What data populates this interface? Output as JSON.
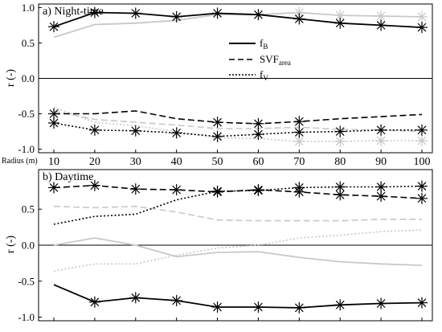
{
  "figure": {
    "shared_x_axis_label": "Radius (m)",
    "x_tick_labels": [
      "10",
      "20",
      "30",
      "40",
      "50",
      "60",
      "70",
      "80",
      "90",
      "100"
    ]
  },
  "legend": {
    "items": [
      {
        "series": "fB",
        "base": "f",
        "sub": "B",
        "style": "solid"
      },
      {
        "series": "SVFarea",
        "base": "SVF",
        "sub": "area",
        "style": "dashed"
      },
      {
        "series": "fV",
        "base": "f",
        "sub": "V",
        "style": "dotted"
      }
    ]
  },
  "colors": {
    "dark": "#000000",
    "light": "#c8c8c8"
  },
  "marker": "asterisk",
  "chart_data": [
    {
      "type": "line",
      "panel_title": "a) Night-time",
      "ylabel": "r (-)",
      "x": [
        10,
        20,
        30,
        40,
        50,
        60,
        70,
        80,
        90,
        100
      ],
      "ylim": [
        -1.05,
        1.05
      ],
      "yticks": [
        1.0,
        0.5,
        0.0,
        -0.5,
        -1.0
      ],
      "y_tick_labels": [
        "1.0",
        "0.5",
        "0.0",
        "-0.5",
        "-1.0"
      ],
      "grid": false,
      "series": [
        {
          "name": "fB",
          "shade": "dark",
          "style": "solid",
          "values": [
            0.73,
            0.93,
            0.92,
            0.87,
            0.92,
            0.9,
            0.84,
            0.78,
            0.75,
            0.72
          ],
          "markers": [
            true,
            true,
            true,
            true,
            true,
            true,
            true,
            true,
            true,
            true
          ]
        },
        {
          "name": "SVFarea",
          "shade": "dark",
          "style": "dashed",
          "values": [
            -0.5,
            -0.5,
            -0.46,
            -0.57,
            -0.62,
            -0.64,
            -0.61,
            -0.57,
            -0.54,
            -0.51
          ],
          "markers": [
            true,
            false,
            false,
            false,
            true,
            true,
            true,
            false,
            false,
            false
          ]
        },
        {
          "name": "fV",
          "shade": "dark",
          "style": "dotted",
          "values": [
            -0.63,
            -0.73,
            -0.74,
            -0.77,
            -0.82,
            -0.79,
            -0.76,
            -0.75,
            -0.73,
            -0.73
          ],
          "markers": [
            true,
            true,
            true,
            true,
            true,
            true,
            true,
            true,
            true,
            true
          ]
        },
        {
          "name": "fB",
          "shade": "light",
          "style": "solid",
          "values": [
            0.58,
            0.76,
            0.78,
            0.82,
            0.9,
            0.9,
            0.93,
            0.89,
            0.88,
            0.87
          ],
          "markers": [
            false,
            false,
            false,
            false,
            false,
            false,
            true,
            true,
            true,
            true
          ]
        },
        {
          "name": "SVFarea",
          "shade": "light",
          "style": "dashed",
          "values": [
            -0.46,
            -0.58,
            -0.62,
            -0.66,
            -0.71,
            -0.71,
            -0.69,
            -0.72,
            -0.73,
            -0.75
          ],
          "markers": [
            false,
            false,
            false,
            false,
            false,
            false,
            false,
            false,
            false,
            false
          ]
        },
        {
          "name": "fV",
          "shade": "light",
          "style": "dotted",
          "values": [
            -0.41,
            -0.62,
            -0.67,
            -0.75,
            -0.84,
            -0.85,
            -0.89,
            -0.89,
            -0.88,
            -0.88
          ],
          "markers": [
            false,
            false,
            false,
            false,
            false,
            false,
            true,
            true,
            true,
            true
          ]
        }
      ]
    },
    {
      "type": "line",
      "panel_title": "b) Daytime",
      "ylabel": "r (-)",
      "x": [
        10,
        20,
        30,
        40,
        50,
        60,
        70,
        80,
        90,
        100
      ],
      "ylim": [
        -1.05,
        1.05
      ],
      "yticks": [
        0.5,
        0.0,
        -0.5,
        -1.0
      ],
      "y_tick_labels": [
        "0.5",
        "0.0",
        "-0.5",
        "-1.0"
      ],
      "grid": false,
      "series": [
        {
          "name": "fB",
          "shade": "dark",
          "style": "solid",
          "values": [
            -0.55,
            -0.79,
            -0.73,
            -0.77,
            -0.86,
            -0.86,
            -0.87,
            -0.83,
            -0.81,
            -0.8
          ],
          "markers": [
            false,
            true,
            true,
            true,
            true,
            true,
            true,
            true,
            true,
            true
          ]
        },
        {
          "name": "SVFarea",
          "shade": "dark",
          "style": "dashed",
          "values": [
            0.8,
            0.83,
            0.78,
            0.77,
            0.74,
            0.77,
            0.74,
            0.7,
            0.68,
            0.65
          ],
          "markers": [
            true,
            true,
            true,
            true,
            true,
            true,
            true,
            true,
            true,
            true
          ]
        },
        {
          "name": "fV",
          "shade": "dark",
          "style": "dotted",
          "values": [
            0.29,
            0.4,
            0.43,
            0.63,
            0.75,
            0.76,
            0.8,
            0.81,
            0.81,
            0.82
          ],
          "markers": [
            false,
            false,
            false,
            false,
            true,
            true,
            true,
            true,
            true,
            true
          ]
        },
        {
          "name": "fB",
          "shade": "light",
          "style": "solid",
          "values": [
            0.0,
            0.1,
            0.0,
            -0.16,
            -0.1,
            -0.09,
            -0.17,
            -0.23,
            -0.26,
            -0.28
          ],
          "markers": [
            false,
            false,
            false,
            false,
            false,
            false,
            false,
            false,
            false,
            false
          ]
        },
        {
          "name": "SVFarea",
          "shade": "light",
          "style": "dashed",
          "values": [
            0.54,
            0.52,
            0.54,
            0.46,
            0.35,
            0.34,
            0.34,
            0.34,
            0.36,
            0.36
          ],
          "markers": [
            false,
            false,
            false,
            false,
            false,
            false,
            false,
            false,
            false,
            false
          ]
        },
        {
          "name": "fV",
          "shade": "light",
          "style": "dotted",
          "values": [
            -0.36,
            -0.26,
            -0.26,
            -0.14,
            -0.04,
            0.0,
            0.1,
            0.14,
            0.19,
            0.21
          ],
          "markers": [
            false,
            false,
            false,
            false,
            false,
            false,
            false,
            false,
            false,
            false
          ]
        }
      ]
    }
  ]
}
